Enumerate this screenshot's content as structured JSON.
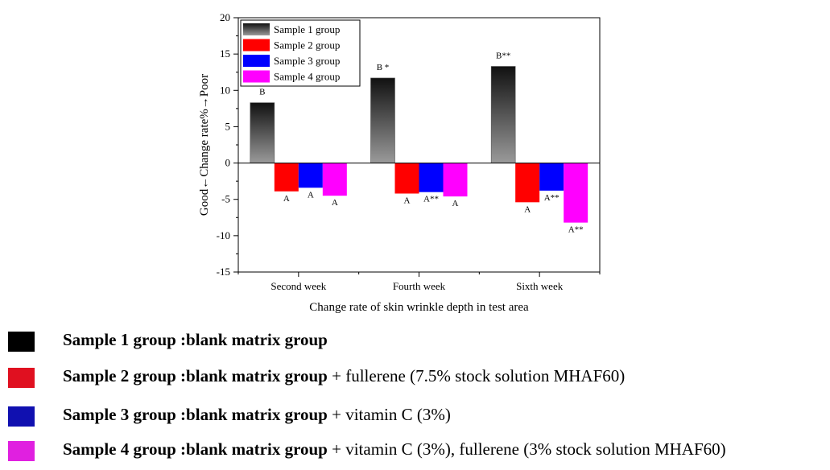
{
  "chart_data": {
    "type": "bar",
    "title": "",
    "xlabel": "Change rate of skin wrinkle depth in test area",
    "ylabel": "Good←Change rate%→Poor",
    "ylim": [
      -15,
      20
    ],
    "yticks": [
      20,
      15,
      10,
      5,
      0,
      -5,
      -10,
      -15
    ],
    "categories": [
      "Second week",
      "Fourth week",
      "Sixth week"
    ],
    "legend_position": "top-left",
    "grid": false,
    "series": [
      {
        "name": "Sample 1 group",
        "color": "#1a1a1a",
        "values": [
          8.3,
          11.7,
          13.3
        ],
        "labels": [
          "B",
          "B *",
          "B**"
        ]
      },
      {
        "name": "Sample 2 group",
        "color": "#ff0000",
        "values": [
          -3.9,
          -4.2,
          -5.4
        ],
        "labels": [
          "A",
          "A",
          "A"
        ]
      },
      {
        "name": "Sample 3 group",
        "color": "#0000ff",
        "values": [
          -3.4,
          -4.0,
          -3.8
        ],
        "labels": [
          "A",
          "A**",
          "A**"
        ]
      },
      {
        "name": "Sample 4 group",
        "color": "#ff00ff",
        "values": [
          -4.5,
          -4.6,
          -8.2
        ],
        "labels": [
          "A",
          "A",
          "A**"
        ]
      }
    ]
  },
  "key": [
    {
      "bold": "Sample 1 group :blank matrix group",
      "rest": "",
      "color": "#000000"
    },
    {
      "bold": "Sample 2 group :blank matrix group",
      "rest": " + fullerene (7.5% stock solution MHAF60)",
      "color": "#e01020"
    },
    {
      "bold": "Sample 3 group :blank matrix group",
      "rest": " + vitamin C (3%)",
      "color": "#1010b0"
    },
    {
      "bold": "Sample 4 group :blank matrix group",
      "rest": " + vitamin C (3%), fullerene (3% stock solution MHAF60)",
      "color": "#e020e0"
    }
  ]
}
